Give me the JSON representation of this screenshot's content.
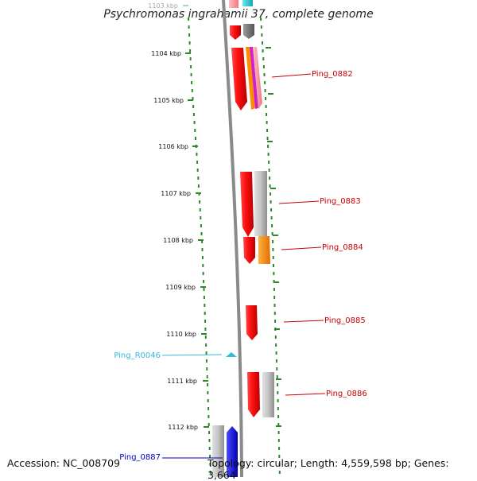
{
  "title": "Psychromonas ingrahamii 37, complete genome",
  "accession": "Accession: NC_008709",
  "summary": "Topology: circular; Length: 4,559,598 bp; Genes: 3,664",
  "colors": {
    "tick": "#2a8a2a",
    "backbone": "#8a8a8a",
    "gene_red": "#ee1111",
    "gene_gray": "#b8b8b8",
    "gene_dark": "#777777",
    "gene_orange": "#ff8c00",
    "gene_pink": "#ff9aa0",
    "gene_magenta": "#cc22cc",
    "gene_cyan": "#23c6d6",
    "gene_blue": "#1010ee",
    "label_red": "#cc0000",
    "label_cyan": "#33bbdd",
    "label_blue": "#0000cc"
  },
  "kbp_labels": [
    "1103 kbp",
    "1104 kbp",
    "1105 kbp",
    "1106 kbp",
    "1107 kbp",
    "1108 kbp",
    "1109 kbp",
    "1110 kbp",
    "1111 kbp",
    "1112 kbp"
  ],
  "gene_labels": [
    {
      "text": "Ping_0882",
      "color": "label_red"
    },
    {
      "text": "Ping_0883",
      "color": "label_red"
    },
    {
      "text": "Ping_0884",
      "color": "label_red"
    },
    {
      "text": "Ping_0885",
      "color": "label_red"
    },
    {
      "text": "Ping_R0046",
      "color": "label_cyan"
    },
    {
      "text": "Ping_0886",
      "color": "label_red"
    },
    {
      "text": "Ping_0887",
      "color": "label_blue"
    }
  ]
}
